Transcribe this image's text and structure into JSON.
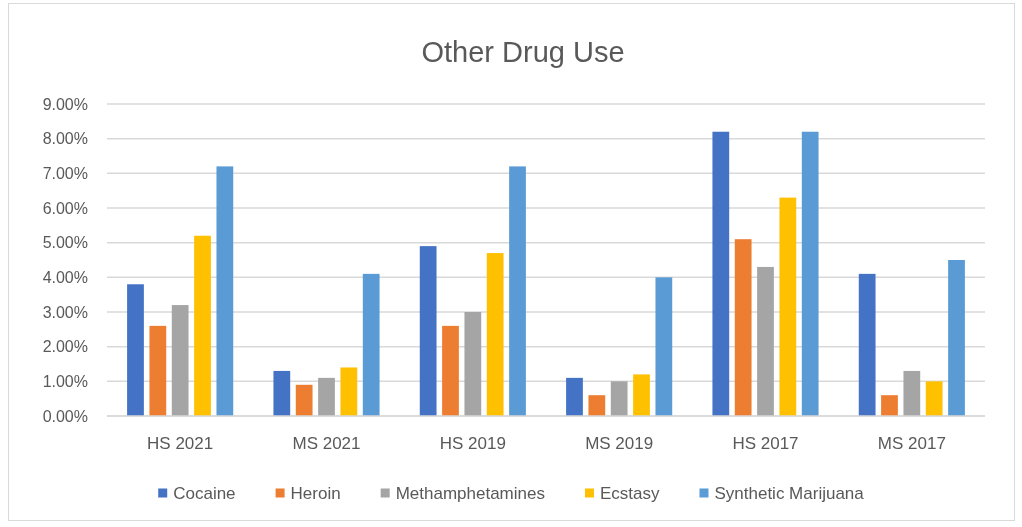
{
  "chart_data": {
    "type": "bar",
    "title": "Other Drug Use",
    "categories": [
      "HS 2021",
      "MS 2021",
      "HS 2019",
      "MS 2019",
      "HS 2017",
      "MS 2017"
    ],
    "series": [
      {
        "name": "Cocaine",
        "color": "#4472c4",
        "values": [
          3.8,
          1.3,
          4.9,
          1.1,
          8.2,
          4.1
        ]
      },
      {
        "name": "Heroin",
        "color": "#ed7d31",
        "values": [
          2.6,
          0.9,
          2.6,
          0.6,
          5.1,
          0.6
        ]
      },
      {
        "name": "Methamphetamines",
        "color": "#a5a5a5",
        "values": [
          3.2,
          1.1,
          3.0,
          1.0,
          4.3,
          1.3
        ]
      },
      {
        "name": "Ecstasy",
        "color": "#ffc000",
        "values": [
          5.2,
          1.4,
          4.7,
          1.2,
          6.3,
          1.0
        ]
      },
      {
        "name": "Synthetic Marijuana",
        "color": "#5b9bd5",
        "values": [
          7.2,
          4.1,
          7.2,
          4.0,
          8.2,
          4.5
        ]
      }
    ],
    "ylim": [
      0,
      9
    ],
    "yticks": [
      {
        "value": 0,
        "label": "0.00%"
      },
      {
        "value": 1,
        "label": "1.00%"
      },
      {
        "value": 2,
        "label": "2.00%"
      },
      {
        "value": 3,
        "label": "3.00%"
      },
      {
        "value": 4,
        "label": "4.00%"
      },
      {
        "value": 5,
        "label": "5.00%"
      },
      {
        "value": 6,
        "label": "6.00%"
      },
      {
        "value": 7,
        "label": "7.00%"
      },
      {
        "value": 8,
        "label": "8.00%"
      },
      {
        "value": 9,
        "label": "9.00%"
      }
    ],
    "grid": "y",
    "legend": "bottom"
  }
}
